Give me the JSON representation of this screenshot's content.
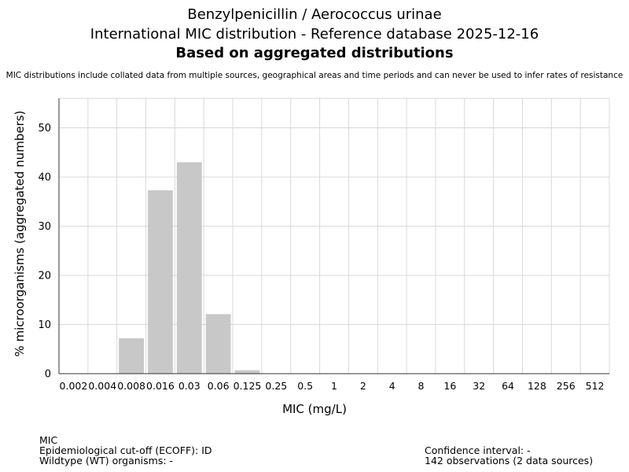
{
  "header": {
    "title_line1": "Benzylpenicillin / Aerococcus urinae",
    "title_line2": "International MIC distribution - Reference database 2025-12-16",
    "title_line3": "Based on aggregated distributions",
    "disclaimer": "MIC distributions include collated data from multiple sources, geographical areas and time periods and can never be used to infer rates of resistance"
  },
  "chart_data": {
    "type": "bar",
    "xlabel": "MIC (mg/L)",
    "ylabel": "% microorganisms (aggregated numbers)",
    "categories": [
      "0.002",
      "0.004",
      "0.008",
      "0.016",
      "0.03",
      "0.06",
      "0.125",
      "0.25",
      "0.5",
      "1",
      "2",
      "4",
      "8",
      "16",
      "32",
      "64",
      "128",
      "256",
      "512"
    ],
    "values": [
      0,
      0,
      7.2,
      37.3,
      43.0,
      12.1,
      0.7,
      0,
      0,
      0,
      0,
      0,
      0,
      0,
      0,
      0,
      0,
      0,
      0
    ],
    "ylim": [
      0,
      56
    ],
    "yticks": [
      0,
      10,
      20,
      30,
      40,
      50
    ],
    "grid": true,
    "bar_color": "#c8c8c8",
    "grid_color": "#d9d9d9"
  },
  "footer": {
    "left_line1": "MIC",
    "left_line2": "Epidemiological cut-off (ECOFF): ID",
    "left_line3": "Wildtype (WT) organisms:  -",
    "right_line1": "Confidence interval: -",
    "right_line2": "142 observations (2 data sources)"
  }
}
